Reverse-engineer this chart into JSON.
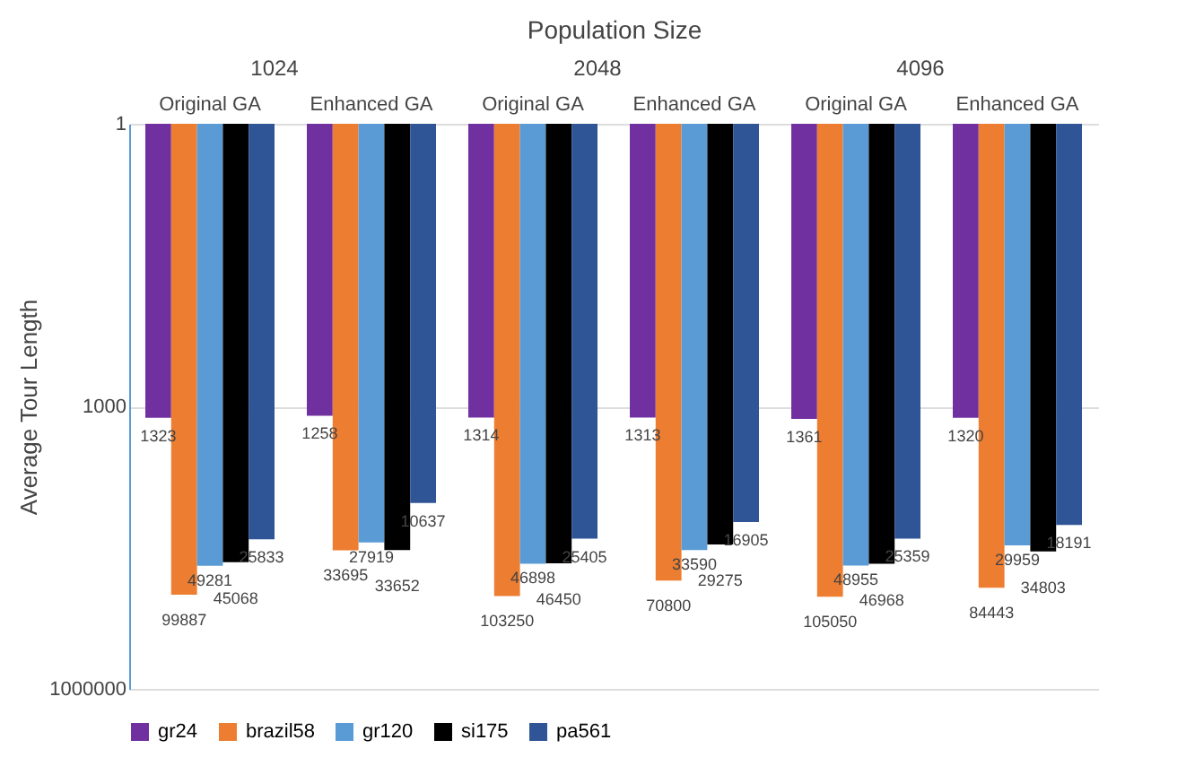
{
  "chart_data": {
    "type": "bar",
    "xlabel": "Population Size",
    "ylabel": "Average Tour Length",
    "categories": [
      "Original GA",
      "Enhanced GA",
      "Original GA",
      "Enhanced GA",
      "Original GA",
      "Enhanced GA"
    ],
    "annotations": [
      "1024",
      "2048",
      "4096"
    ],
    "series": [
      {
        "name": "gr24",
        "color": "#7030a0",
        "values": [
          1323,
          1258,
          1314,
          1313,
          1361,
          1320
        ]
      },
      {
        "name": "brazil58",
        "color": "#ed7d31",
        "values": [
          99887,
          33695,
          103250,
          70800,
          105050,
          84443
        ]
      },
      {
        "name": "gr120",
        "color": "#5b9bd5",
        "values": [
          49281,
          27919,
          46898,
          33590,
          48955,
          29959
        ]
      },
      {
        "name": "si175",
        "color": "#000000",
        "values": [
          45068,
          33652,
          46450,
          29275,
          46968,
          34803
        ]
      },
      {
        "name": "pa561",
        "color": "#2f5597",
        "values": [
          25833,
          10637,
          25405,
          16905,
          25359,
          18191
        ]
      }
    ],
    "log": true,
    "ylim": [
      1000000,
      1
    ],
    "yticks": [
      1,
      1000,
      1000000
    ],
    "grid": "y",
    "legend": "bottom",
    "data_labels": true
  }
}
